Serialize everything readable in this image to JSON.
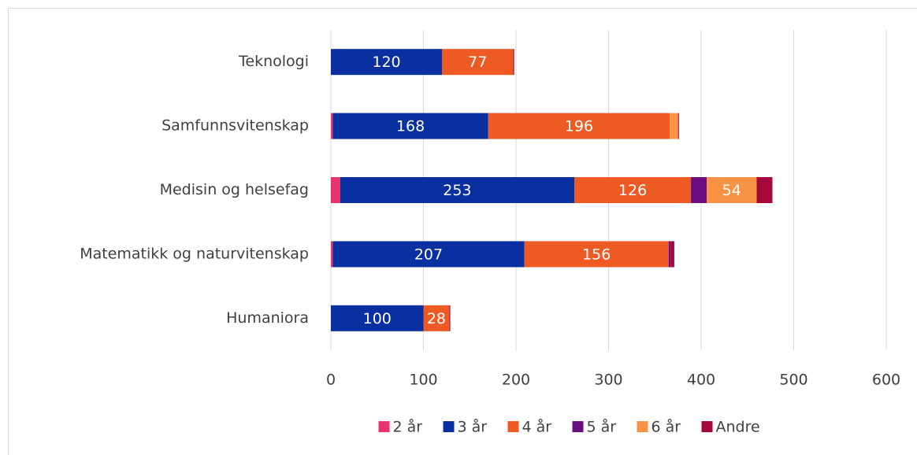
{
  "chart_data": {
    "type": "stacked-barh",
    "categories": [
      "Teknologi",
      "Samfunnsvitenskap",
      "Medisin og helsefag",
      "Matematikk og naturvitenskap",
      "Humaniora"
    ],
    "series": [
      {
        "name": "2 år",
        "color": "#e8336e",
        "values": [
          0,
          2,
          10,
          2,
          0
        ]
      },
      {
        "name": "3 år",
        "color": "#0a2fa0",
        "values": [
          120,
          168,
          253,
          207,
          100
        ]
      },
      {
        "name": "4 år",
        "color": "#ee5a24",
        "values": [
          77,
          196,
          126,
          156,
          28
        ]
      },
      {
        "name": "5 år",
        "color": "#6a0d83",
        "values": [
          0,
          0,
          17,
          2,
          0
        ]
      },
      {
        "name": "6 år",
        "color": "#f99245",
        "values": [
          0,
          9,
          54,
          0,
          0
        ]
      },
      {
        "name": "Andre",
        "color": "#a6083b",
        "values": [
          1,
          1,
          17,
          4,
          1
        ]
      }
    ],
    "xlim": [
      0,
      600
    ],
    "xticks": [
      0,
      100,
      200,
      300,
      400,
      500,
      600
    ],
    "grid": true,
    "legend": "bottom"
  }
}
